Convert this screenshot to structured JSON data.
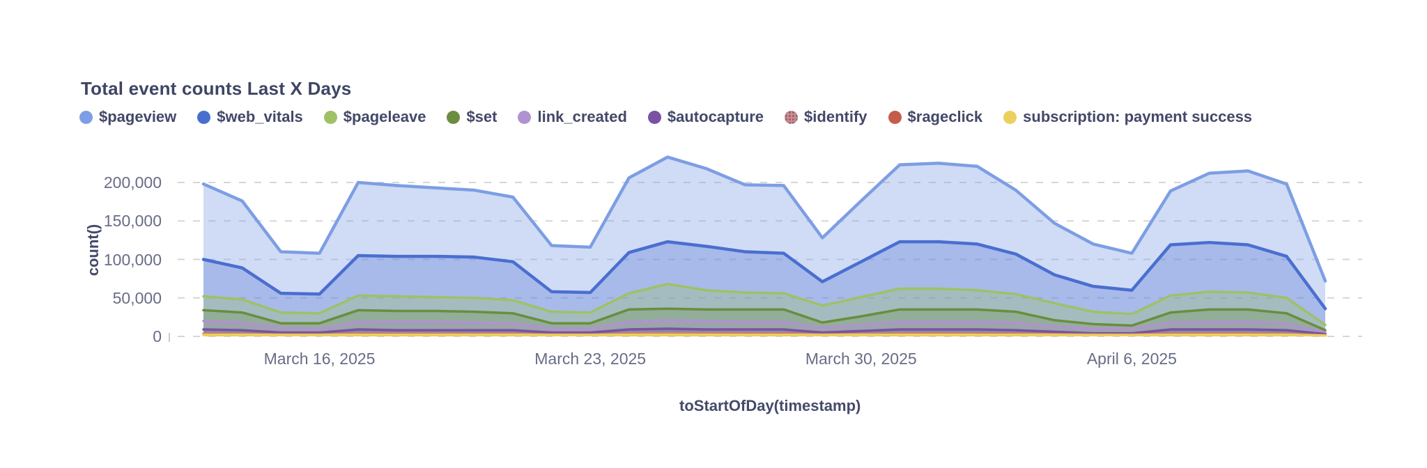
{
  "chart_data": {
    "type": "area",
    "title": "Total event counts Last X Days",
    "xlabel": "toStartOfDay(timestamp)",
    "ylabel": "count()",
    "ylim": [
      0,
      250000
    ],
    "grid": "dashed-horizontal",
    "legend_position": "top",
    "x_points": 30,
    "x_ticks": [
      {
        "index": 3,
        "label": "March 16, 2025"
      },
      {
        "index": 10,
        "label": "March 23, 2025"
      },
      {
        "index": 17,
        "label": "March 30, 2025"
      },
      {
        "index": 24,
        "label": "April 6, 2025"
      }
    ],
    "y_ticks": [
      {
        "value": 0,
        "label": "0"
      },
      {
        "value": 50000,
        "label": "50,000"
      },
      {
        "value": 100000,
        "label": "100,000"
      },
      {
        "value": 150000,
        "label": "150,000"
      },
      {
        "value": 200000,
        "label": "200,000"
      }
    ],
    "series": [
      {
        "name": "$pageview",
        "color": "#7d9ee4",
        "fill_opacity": 0.36,
        "values": [
          198000,
          176000,
          110000,
          108000,
          200000,
          196000,
          193000,
          190000,
          181000,
          118000,
          116000,
          206000,
          233000,
          218000,
          197000,
          196000,
          128000,
          176000,
          223000,
          225000,
          221000,
          190000,
          147000,
          120000,
          108000,
          189000,
          212000,
          215000,
          198000,
          72000
        ]
      },
      {
        "name": "$web_vitals",
        "color": "#4a6ed0",
        "fill_opacity": 0.3,
        "values": [
          100000,
          89000,
          56000,
          55000,
          105000,
          104000,
          104000,
          103000,
          97000,
          58000,
          57000,
          109000,
          123000,
          117000,
          110000,
          108000,
          71000,
          97000,
          123000,
          123000,
          120000,
          107000,
          80000,
          65000,
          60000,
          119000,
          122000,
          119000,
          104000,
          36000
        ]
      },
      {
        "name": "$pageleave",
        "color": "#9fc165",
        "fill_opacity": 0.32,
        "values": [
          52000,
          48000,
          31000,
          30000,
          53000,
          52000,
          51000,
          50000,
          47000,
          32000,
          31000,
          56000,
          68000,
          60000,
          57000,
          56000,
          40000,
          51000,
          62000,
          62000,
          60000,
          55000,
          43000,
          32000,
          29000,
          53000,
          58000,
          57000,
          50000,
          15000
        ]
      },
      {
        "name": "$set",
        "color": "#6a8d3f",
        "fill_opacity": 0.3,
        "values": [
          34000,
          31000,
          17000,
          17000,
          34000,
          33000,
          33000,
          32000,
          30000,
          17000,
          17000,
          35000,
          36000,
          35000,
          35000,
          35000,
          18000,
          26000,
          35000,
          35000,
          35000,
          32000,
          21000,
          16000,
          14000,
          31000,
          35000,
          35000,
          30000,
          8000
        ]
      },
      {
        "name": "link_created",
        "color": "#b192d1",
        "fill_opacity": 0.34,
        "values": [
          20000,
          18000,
          11000,
          10000,
          19000,
          19000,
          19000,
          18000,
          17000,
          10000,
          10000,
          19000,
          21000,
          20000,
          19000,
          19000,
          11000,
          15000,
          19000,
          19000,
          19000,
          18000,
          13000,
          10000,
          10000,
          18000,
          19000,
          19000,
          17000,
          5000
        ]
      },
      {
        "name": "$autocapture",
        "color": "#7952a3",
        "fill_opacity": 0.35,
        "values": [
          9000,
          8000,
          5000,
          5000,
          9000,
          8000,
          8000,
          8000,
          8000,
          5000,
          5000,
          9000,
          10000,
          9000,
          9000,
          9000,
          5000,
          7000,
          9000,
          9000,
          9000,
          8000,
          6000,
          4000,
          4000,
          9000,
          9000,
          9000,
          8000,
          3000
        ]
      },
      {
        "name": "$identify",
        "color": "#cc8f80",
        "fill_opacity": 0.55,
        "pattern": true,
        "values": [
          3500,
          3200,
          2500,
          2400,
          3500,
          3400,
          3400,
          3300,
          3200,
          2400,
          2400,
          3600,
          3800,
          3600,
          3500,
          3500,
          2500,
          3000,
          3600,
          3600,
          3500,
          3300,
          2800,
          2300,
          2300,
          3500,
          3600,
          3600,
          3200,
          1500
        ]
      },
      {
        "name": "$rageclick",
        "color": "#c45c4a",
        "fill_opacity": 0.45,
        "values": [
          2800,
          2600,
          2000,
          2000,
          2800,
          2700,
          2700,
          2700,
          2600,
          2000,
          2000,
          2900,
          3000,
          2900,
          2800,
          2800,
          2000,
          2400,
          2900,
          2900,
          2800,
          2700,
          2200,
          1900,
          1900,
          2800,
          2900,
          2900,
          2600,
          1200
        ]
      },
      {
        "name": "subscription: payment success",
        "color": "#ecd05e",
        "fill_opacity": 0.85,
        "values": [
          2200,
          2100,
          1800,
          1800,
          2200,
          2200,
          2200,
          2100,
          2100,
          1800,
          1800,
          2300,
          2400,
          2300,
          2200,
          2200,
          1800,
          2000,
          2300,
          2300,
          2200,
          2100,
          1900,
          1700,
          1700,
          2200,
          2300,
          2300,
          2100,
          1000
        ]
      }
    ],
    "colors": {
      "title_text": "#3f4564",
      "legend_text": "#434868",
      "tick_text": "#686c86",
      "axis_title_text": "#454a6b",
      "gridline": "#d6d6d6",
      "background": "#ffffff"
    }
  }
}
